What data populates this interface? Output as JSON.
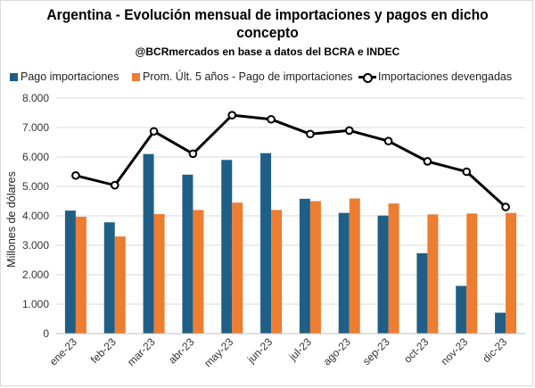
{
  "chart_data": {
    "type": "bar",
    "title": "Argentina - Evolución mensual de importaciones y pagos en dicho concepto",
    "subtitle": "@BCRmercados en base a datos del BCRA e INDEC",
    "xlabel": "",
    "ylabel": "Millones de dólares",
    "ylim": [
      0,
      8000
    ],
    "yticks": [
      "0",
      "1.000",
      "2.000",
      "3.000",
      "4.000",
      "5.000",
      "6.000",
      "7.000",
      "8.000"
    ],
    "ytick_values": [
      0,
      1000,
      2000,
      3000,
      4000,
      5000,
      6000,
      7000,
      8000
    ],
    "categories": [
      "ene-23",
      "feb-23",
      "mar-23",
      "abr-23",
      "may-23",
      "jun-23",
      "jul-23",
      "ago-23",
      "sep-23",
      "oct-23",
      "nov-23",
      "dic-23"
    ],
    "grid": true,
    "legend_position": "top",
    "series": [
      {
        "name": "Pago importaciones",
        "type": "bar",
        "color": "#1f5f85",
        "values": [
          4180,
          3780,
          6100,
          5400,
          5900,
          6130,
          4580,
          4100,
          4010,
          2730,
          1620,
          710
        ]
      },
      {
        "name": "Prom. Últ. 5 años - Pago de importaciones",
        "type": "bar",
        "color": "#ed7d31",
        "values": [
          3970,
          3300,
          4060,
          4200,
          4450,
          4200,
          4500,
          4590,
          4420,
          4050,
          4080,
          4100
        ]
      },
      {
        "name": "Importaciones devengadas",
        "type": "line",
        "color": "#000000",
        "values": [
          5370,
          5040,
          6870,
          6110,
          7420,
          7280,
          6780,
          6900,
          6540,
          5850,
          5500,
          4300
        ]
      }
    ]
  }
}
